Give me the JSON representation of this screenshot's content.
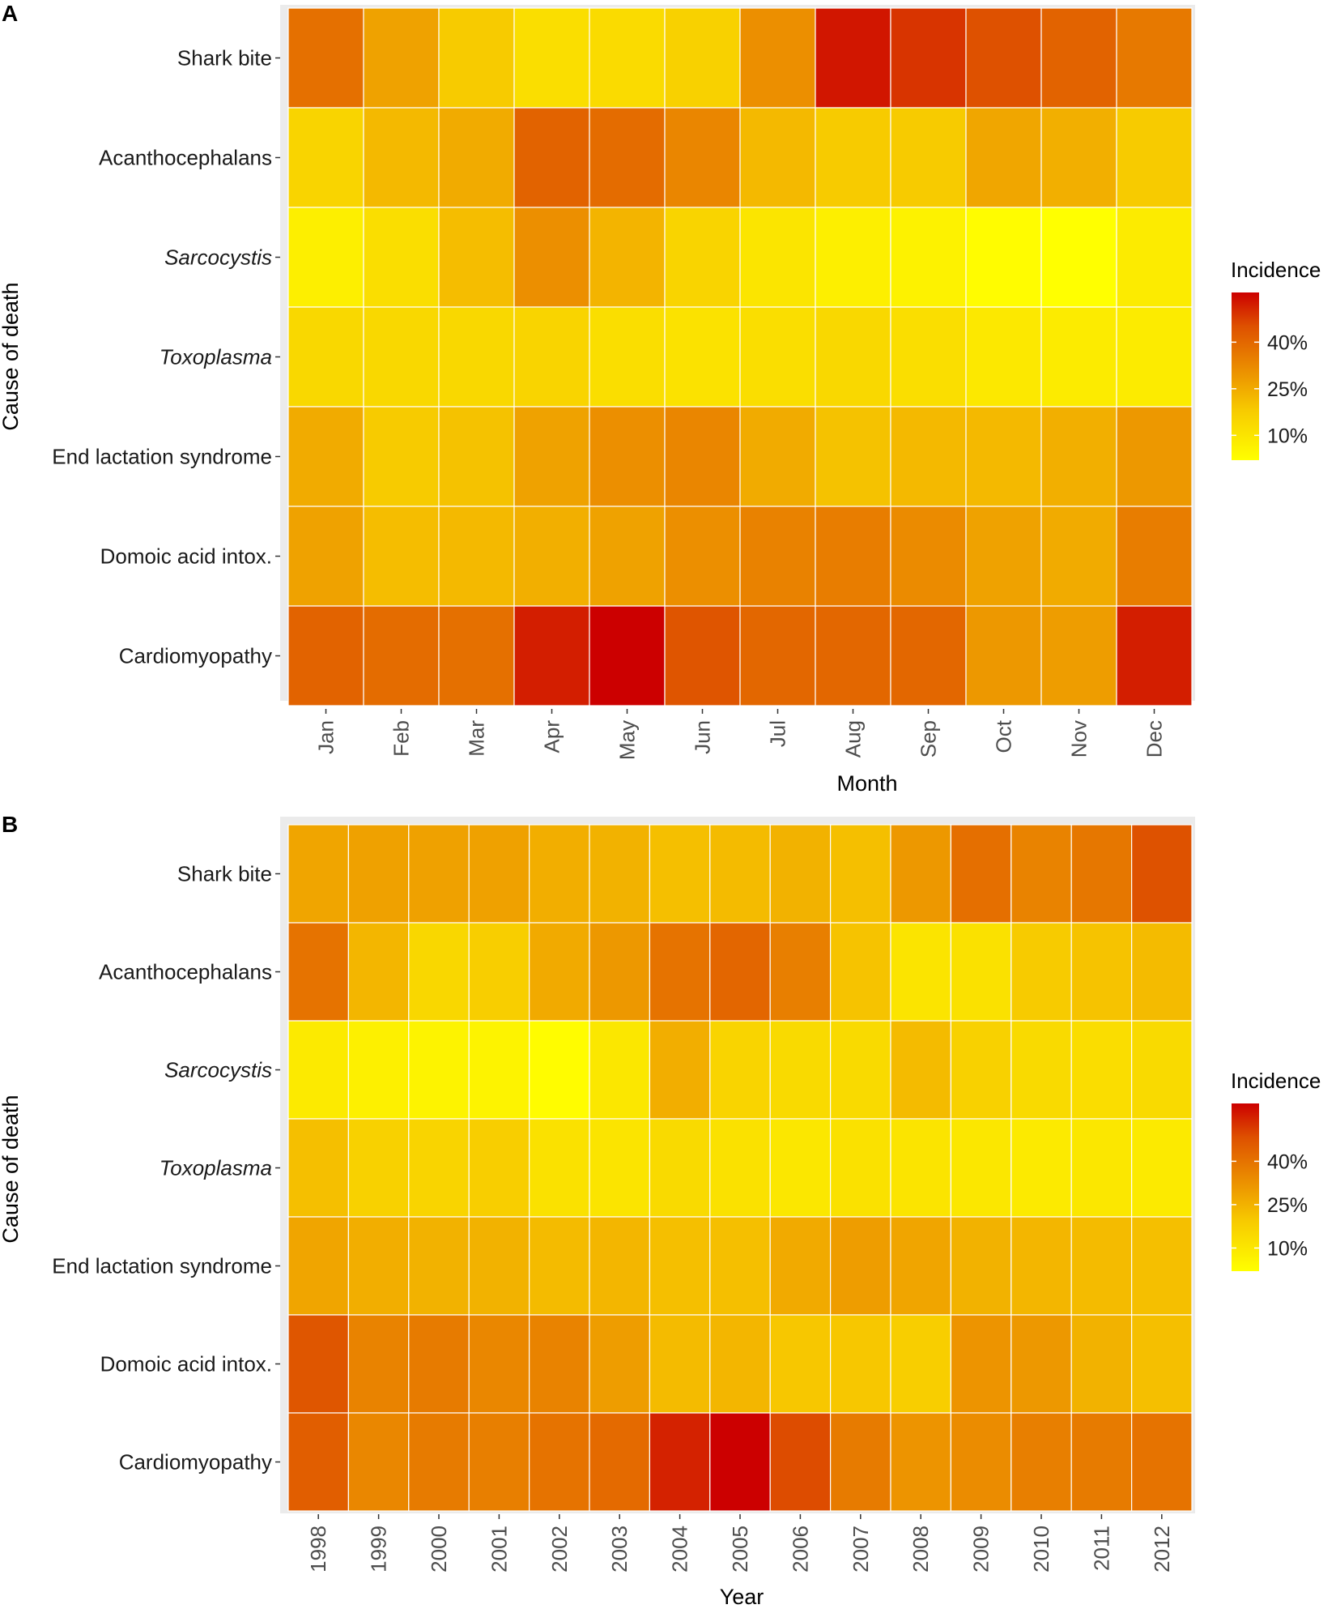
{
  "chart_data": [
    {
      "panel": "A",
      "type": "heatmap",
      "xlabel": "Month",
      "ylabel": "Cause of death",
      "categories": [
        "Jan",
        "Feb",
        "Mar",
        "Apr",
        "May",
        "Jun",
        "Jul",
        "Aug",
        "Sep",
        "Oct",
        "Nov",
        "Dec"
      ],
      "rows": [
        "Shark bite",
        "Acanthocephalans",
        "Sarcocystis",
        "Toxoplasma",
        "End lactation syndrome",
        "Domoic acid intox.",
        "Cardiomyopathy"
      ],
      "italic_rows": [
        "Sarcocystis",
        "Toxoplasma"
      ],
      "values": [
        [
          38,
          27,
          18,
          12,
          13,
          16,
          31,
          53,
          49,
          45,
          41,
          36
        ],
        [
          15,
          22,
          25,
          41,
          39,
          33,
          22,
          18,
          18,
          26,
          24,
          18
        ],
        [
          7,
          12,
          21,
          31,
          23,
          15,
          10,
          7,
          6,
          3,
          2,
          8
        ],
        [
          14,
          14,
          14,
          15,
          12,
          11,
          12,
          14,
          12,
          9,
          8,
          8
        ],
        [
          25,
          18,
          20,
          27,
          31,
          33,
          25,
          20,
          22,
          22,
          24,
          29
        ],
        [
          27,
          21,
          22,
          24,
          27,
          31,
          34,
          35,
          32,
          27,
          25,
          35
        ],
        [
          41,
          39,
          38,
          52,
          56,
          44,
          40,
          40,
          40,
          29,
          28,
          52
        ]
      ],
      "legend": {
        "title": "Incidence",
        "ticks": [
          "40%",
          "25%",
          "10%"
        ],
        "tick_values": [
          40,
          25,
          10
        ],
        "min": 2,
        "max": 56
      }
    },
    {
      "panel": "B",
      "type": "heatmap",
      "xlabel": "Year",
      "ylabel": "Cause of death",
      "categories": [
        "1998",
        "1999",
        "2000",
        "2001",
        "2002",
        "2003",
        "2004",
        "2005",
        "2006",
        "2007",
        "2008",
        "2009",
        "2010",
        "2011",
        "2012"
      ],
      "rows": [
        "Shark bite",
        "Acanthocephalans",
        "Sarcocystis",
        "Toxoplasma",
        "End lactation syndrome",
        "Domoic acid intox.",
        "Cardiomyopathy"
      ],
      "italic_rows": [
        "Sarcocystis",
        "Toxoplasma"
      ],
      "values": [
        [
          28,
          29,
          29,
          29,
          26,
          25,
          22,
          23,
          25,
          22,
          31,
          41,
          36,
          39,
          48
        ],
        [
          40,
          24,
          15,
          18,
          27,
          31,
          40,
          43,
          37,
          21,
          11,
          12,
          19,
          21,
          23
        ],
        [
          9,
          7,
          6,
          6,
          3,
          10,
          26,
          16,
          14,
          14,
          23,
          17,
          14,
          13,
          14
        ],
        [
          22,
          17,
          16,
          18,
          12,
          11,
          14,
          12,
          10,
          12,
          11,
          10,
          9,
          10,
          9
        ],
        [
          28,
          26,
          25,
          25,
          23,
          24,
          22,
          22,
          27,
          30,
          28,
          25,
          24,
          23,
          22
        ],
        [
          47,
          36,
          38,
          35,
          36,
          30,
          23,
          24,
          20,
          20,
          18,
          32,
          31,
          25,
          22
        ],
        [
          45,
          35,
          38,
          37,
          40,
          42,
          55,
          60,
          49,
          38,
          32,
          34,
          37,
          38,
          40
        ]
      ],
      "legend": {
        "title": "Incidence",
        "ticks": [
          "40%",
          "25%",
          "10%"
        ],
        "tick_values": [
          40,
          25,
          10
        ],
        "min": 2,
        "max": 60
      }
    }
  ]
}
